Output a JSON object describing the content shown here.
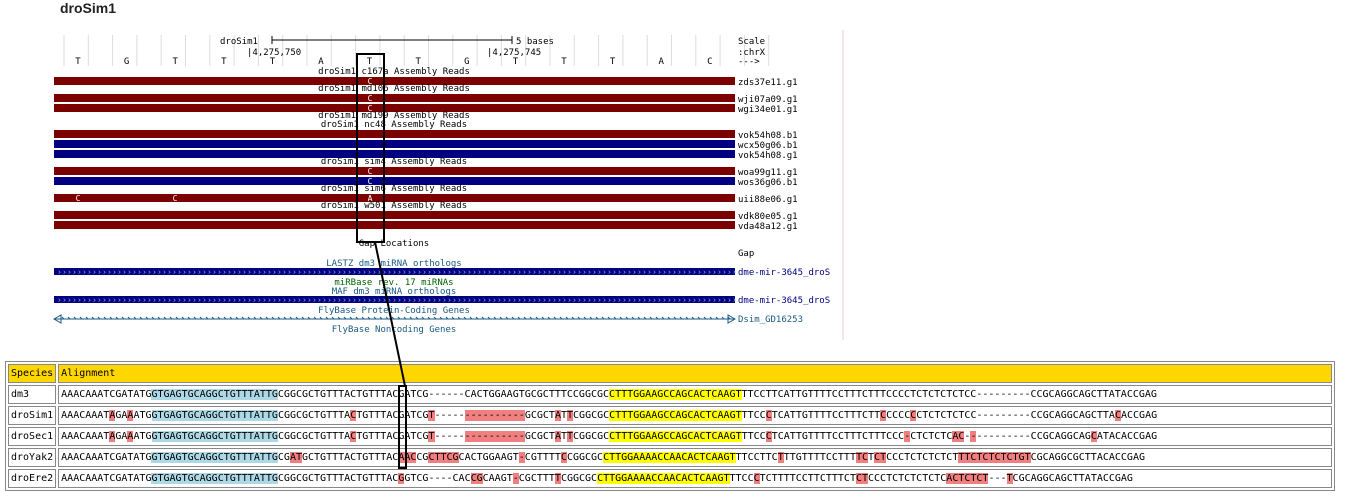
{
  "page_title": "droSim1",
  "browser": {
    "assembly": "droSim1",
    "scale_label": "5 bases",
    "scale_word": "Scale",
    "chrom": ":chrX",
    "arrow": "--->",
    "positions": [
      "4,275,750",
      "4,275,745"
    ],
    "bases": [
      "T",
      "G",
      "T",
      "T",
      "T",
      "A",
      "T",
      "T",
      "G",
      "T",
      "T",
      "T",
      "A",
      "C"
    ],
    "groups": [
      {
        "label": "droSim1 c167a Assembly Reads",
        "reads": [
          {
            "name": "zds37e11.g1",
            "color": "#7b0000",
            "base": "C"
          }
        ]
      },
      {
        "label": "droSim1 md106 Assembly Reads",
        "reads": [
          {
            "name": "wji07a09.g1",
            "color": "#7b0000",
            "base": "C"
          },
          {
            "name": "wgi34e01.g1",
            "color": "#7b0000",
            "base": "C"
          }
        ]
      },
      {
        "label": "droSim1 md199 Assembly Reads",
        "reads": []
      },
      {
        "label": "droSim1 nc48 Assembly Reads",
        "reads": [
          {
            "name": "vok54h08.b1",
            "color": "#7b0000",
            "base": ""
          },
          {
            "name": "wcx50g06.b1",
            "color": "#000080",
            "base": ""
          },
          {
            "name": "vok54h08.g1",
            "color": "#000080",
            "base": ""
          }
        ]
      },
      {
        "label": "droSim1 sim4 Assembly Reads",
        "reads": [
          {
            "name": "woa99g11.g1",
            "color": "#7b0000",
            "base": "C"
          },
          {
            "name": "wos36g06.b1",
            "color": "#000080",
            "base": "C"
          }
        ]
      },
      {
        "label": "droSim1 sim6 Assembly Reads",
        "reads": [
          {
            "name": "uii88e06.g1",
            "color": "#7b0000",
            "base": "A",
            "extra": [
              "C",
              "C"
            ]
          }
        ]
      },
      {
        "label": "droSim1 w501 Assembly Reads",
        "reads": [
          {
            "name": "vdk80e05.g1",
            "color": "#7b0000",
            "base": ""
          },
          {
            "name": "vda48a12.g1",
            "color": "#7b0000",
            "base": ""
          }
        ]
      }
    ],
    "gap_label": "Gap Locations",
    "gap_side": "Gap",
    "lastz_label": "LASTZ dm3 miRNA orthologs",
    "lastz_name": "dme-mir-3645_droS",
    "mirbase_label": "miRBase rev. 17 miRNAs",
    "maf_label": "MAF dm3 miRNA orthologs",
    "maf_name": "dme-mir-3645_droS",
    "flybase_pc_label": "FlyBase Protein-Coding Genes",
    "flybase_pc_name": "Dsim_GD16253",
    "flybase_nc_label": "FlyBase Noncoding Genes",
    "colors": {
      "read_red": "#7b0000",
      "read_blue": "#000080",
      "track_text": "#1a5a86",
      "mirbase_green": "#006600",
      "header_gold": "#ffd700"
    }
  },
  "alignment": {
    "headers": [
      "Species",
      "Alignment"
    ],
    "rows": [
      {
        "species": "dm3",
        "segs": [
          [
            "",
            "AAACAAATCGATATG"
          ],
          [
            "b",
            "GTGAGTGCAGGCTGTTTATTG"
          ],
          [
            "",
            "CGGCGCTGTTTACTGTTTACGATCG------CACTGGAAGTGCGCTTTCCGGCGC"
          ],
          [
            "y",
            "CTTTGGAAGCCAGCACTCAAGT"
          ],
          [
            "",
            "TTCCTTCATTGTTTTCCTTTCTTTCCCCTCTCTCTCTCC---------CCGCAGGCAGCTTATACCGAG"
          ]
        ]
      },
      {
        "species": "droSim1",
        "segs": [
          [
            "",
            "AAACAAAT"
          ],
          [
            "r",
            "A"
          ],
          [
            "",
            "GA"
          ],
          [
            "r",
            "A"
          ],
          [
            "",
            "ATG"
          ],
          [
            "b",
            "GTGAGTGCAGGCTGTTTATTG"
          ],
          [
            "",
            "CGGCGCTGTTTA"
          ],
          [
            "r",
            "C"
          ],
          [
            "",
            "TGTTTACGATCG"
          ],
          [
            "r",
            "T"
          ],
          [
            "",
            "-----"
          ],
          [
            "r",
            "----------"
          ],
          [
            "",
            "GCGCT"
          ],
          [
            "r",
            "A"
          ],
          [
            "",
            "T"
          ],
          [
            "r",
            "T"
          ],
          [
            "",
            "CGGCGC"
          ],
          [
            "y",
            "CTTTGGAAGCCAGCACTCAAGT"
          ],
          [
            "",
            "TTCC"
          ],
          [
            "r",
            "C"
          ],
          [
            "",
            "TCATTGTTTTCCTTTCTT"
          ],
          [
            "r",
            "C"
          ],
          [
            "",
            "CCCC"
          ],
          [
            "r",
            "C"
          ],
          [
            "",
            "CTCTCTCTCC---------CCGCAGGCAGCTTA"
          ],
          [
            "r",
            "C"
          ],
          [
            "",
            "ACCGAG"
          ]
        ]
      },
      {
        "species": "droSec1",
        "segs": [
          [
            "",
            "AAACAAAT"
          ],
          [
            "r",
            "A"
          ],
          [
            "",
            "GA"
          ],
          [
            "r",
            "A"
          ],
          [
            "",
            "ATG"
          ],
          [
            "b",
            "GTGAGTGCAGGCTGTTTATTG"
          ],
          [
            "",
            "CGGCGCTGTTTA"
          ],
          [
            "r",
            "C"
          ],
          [
            "",
            "TGTTTACGATCG"
          ],
          [
            "r",
            "T"
          ],
          [
            "",
            "-----"
          ],
          [
            "r",
            "----------"
          ],
          [
            "",
            "GCGCT"
          ],
          [
            "r",
            "A"
          ],
          [
            "",
            "T"
          ],
          [
            "r",
            "T"
          ],
          [
            "",
            "CGGCGC"
          ],
          [
            "y",
            "CTTTGGAAGCCAGCACTCAAGT"
          ],
          [
            "",
            "TTCC"
          ],
          [
            "r",
            "C"
          ],
          [
            "",
            "TCATTGTTTTCCTTTCTTTCCC"
          ],
          [
            "r",
            "-"
          ],
          [
            "",
            "CTCTCTC"
          ],
          [
            "r",
            "AC"
          ],
          [
            "",
            "-"
          ],
          [
            "r",
            "-"
          ],
          [
            "",
            "---------CCGCAGGCAG"
          ],
          [
            "r",
            "C"
          ],
          [
            "",
            "ATACACCGAG"
          ]
        ]
      },
      {
        "species": "droYak2",
        "segs": [
          [
            "",
            "AAACAAATCGATATG"
          ],
          [
            "b",
            "GTGAGTGCAGGCTGTTTATTG"
          ],
          [
            "",
            "CG"
          ],
          [
            "r",
            "AT"
          ],
          [
            "",
            "GCTGTTTACTGTTTAC"
          ],
          [
            "r",
            "AAC"
          ],
          [
            "",
            "CG"
          ],
          [
            "r",
            "CTTCG"
          ],
          [
            "",
            "CACTGGAAGT"
          ],
          [
            "r",
            "-"
          ],
          [
            "",
            "CGTTTT"
          ],
          [
            "r",
            "C"
          ],
          [
            "",
            "CGGCGC"
          ],
          [
            "y",
            "CTTGGAAAACCAACACTCAAGT"
          ],
          [
            "",
            "TTCCTTC"
          ],
          [
            "r",
            "T"
          ],
          [
            "",
            "TTGTTTTCCTTT"
          ],
          [
            "r",
            "TC"
          ],
          [
            "",
            "T"
          ],
          [
            "r",
            "CT"
          ],
          [
            "",
            "CCCTCTCTCTCT"
          ],
          [
            "r",
            "TTCTCTCTCTGT"
          ],
          [
            "",
            "CGCAGGCGCTTACACCGAG"
          ]
        ]
      },
      {
        "species": "droEre2",
        "segs": [
          [
            "",
            "AAACAAATCGATATG"
          ],
          [
            "b",
            "GTGAGTGCAGGCTGTTTATTG"
          ],
          [
            "",
            "CGGCGCTGTTTACTGTTTAC"
          ],
          [
            "r",
            "G"
          ],
          [
            "",
            "GTCG----CAC"
          ],
          [
            "r",
            "CG"
          ],
          [
            "",
            "CAAGT"
          ],
          [
            "r",
            "-"
          ],
          [
            "",
            "CGCTTT"
          ],
          [
            "r",
            "T"
          ],
          [
            "",
            "CGGCGC"
          ],
          [
            "y",
            "CTTGGAAAACCAACACTCAAGT"
          ],
          [
            "",
            "TTCC"
          ],
          [
            "r",
            "C"
          ],
          [
            "",
            "TCTTTTCCTTCTTTCT"
          ],
          [
            "r",
            "CT"
          ],
          [
            "",
            "CCCTCTCTCTCTC"
          ],
          [
            "r",
            "ACTCTCT"
          ],
          [
            "",
            "---"
          ],
          [
            "r",
            "T"
          ],
          [
            "",
            "CGCAGGCAGCTTATACCGAG"
          ]
        ]
      }
    ]
  }
}
